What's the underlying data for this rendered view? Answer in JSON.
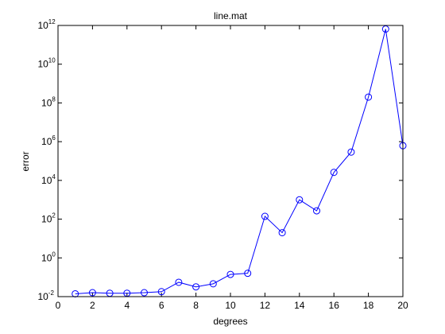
{
  "chart_data": {
    "type": "line",
    "title": "line.mat",
    "xlabel": "degrees",
    "ylabel": "error",
    "y_scale": "log",
    "xlim": [
      0,
      20
    ],
    "ylim": [
      0.01,
      1000000000000
    ],
    "x_ticks": [
      0,
      2,
      4,
      6,
      8,
      10,
      12,
      14,
      16,
      18,
      20
    ],
    "y_ticks": [
      {
        "base": "10",
        "exp": "-2"
      },
      {
        "base": "10",
        "exp": "0"
      },
      {
        "base": "10",
        "exp": "2"
      },
      {
        "base": "10",
        "exp": "4"
      },
      {
        "base": "10",
        "exp": "6"
      },
      {
        "base": "10",
        "exp": "8"
      },
      {
        "base": "10",
        "exp": "10"
      },
      {
        "base": "10",
        "exp": "12"
      }
    ],
    "grid": false,
    "line_color": "#0000ff",
    "marker": "circle",
    "series": [
      {
        "x": [
          1,
          2,
          3,
          4,
          5,
          6,
          7,
          8,
          9,
          10,
          11,
          12,
          13,
          14,
          15,
          16,
          17,
          18,
          19,
          20
        ],
        "values": [
          0.014,
          0.016,
          0.015,
          0.015,
          0.016,
          0.018,
          0.055,
          0.032,
          0.046,
          0.14,
          0.16,
          140,
          20,
          1000,
          270,
          26000,
          290000,
          200000000,
          650000000000,
          620000
        ]
      }
    ]
  }
}
